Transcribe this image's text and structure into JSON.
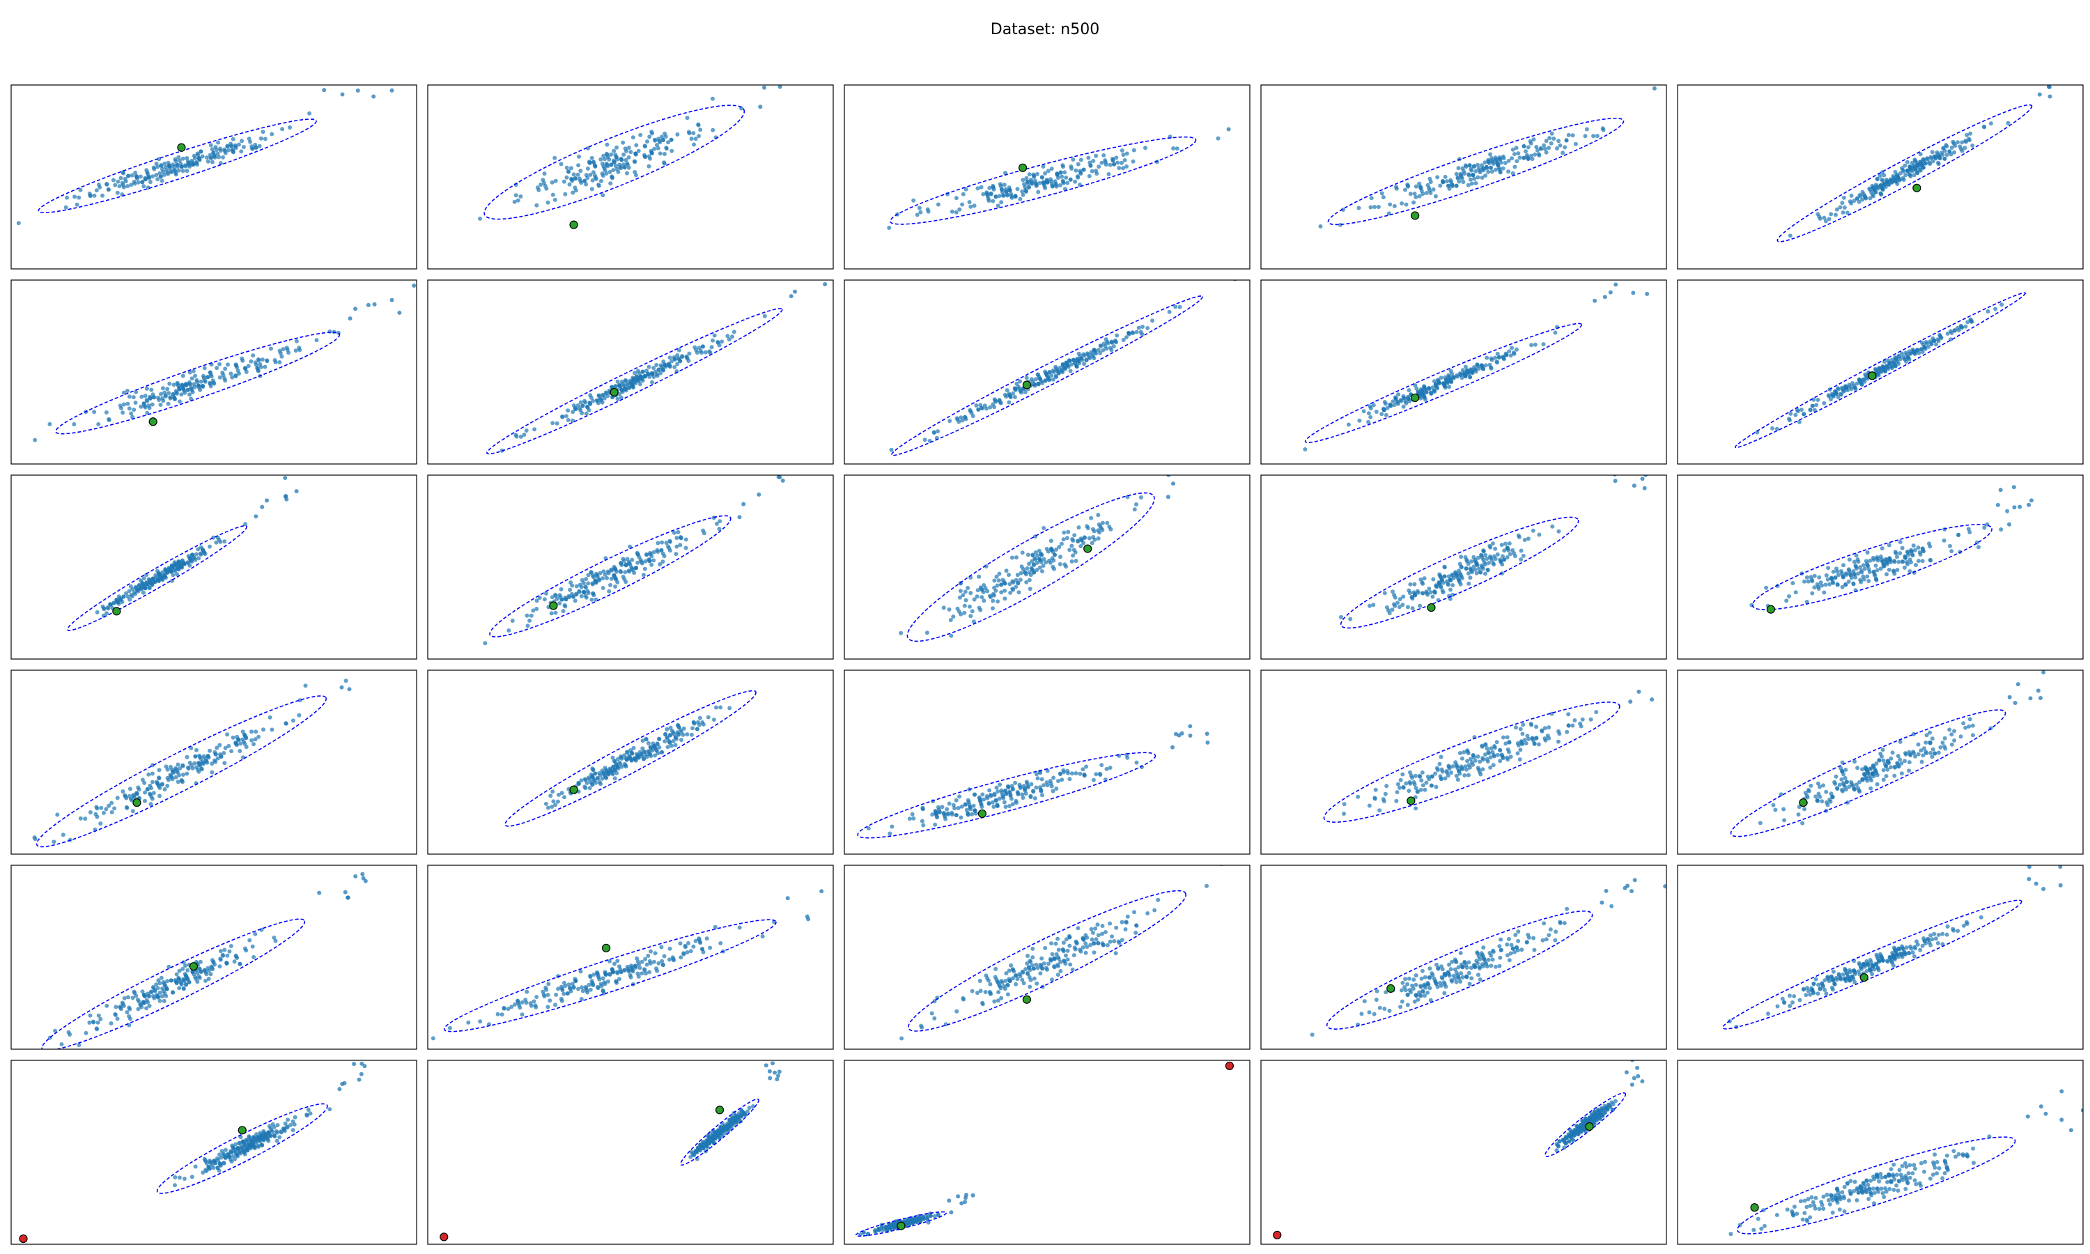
{
  "figure": {
    "title": "Dataset: n500"
  },
  "chart_data": {
    "type": "scatter",
    "grid": false,
    "axes_ticks": "none",
    "rows": 6,
    "cols": 5,
    "colors": {
      "points": "#1f77b4",
      "ellipse": "#0000ff",
      "center_marker": "#2ca02c",
      "outlier_marker": "#d62728",
      "frame": "#000000"
    },
    "panels": [
      {
        "row": 1,
        "col": 1,
        "center": [
          0.42,
          0.66
        ],
        "ellipse": {
          "cx": 0.41,
          "cy": 0.56,
          "rx": 0.72,
          "ry": 0.14,
          "angle": -18
        },
        "outlier": null,
        "spread": "wide"
      },
      {
        "row": 1,
        "col": 2,
        "center": [
          0.36,
          0.24
        ],
        "ellipse": {
          "cx": 0.46,
          "cy": 0.58,
          "rx": 0.69,
          "ry": 0.26,
          "angle": -22
        },
        "outlier": null,
        "spread": "wide"
      },
      {
        "row": 1,
        "col": 3,
        "center": [
          0.44,
          0.55
        ],
        "ellipse": {
          "cx": 0.49,
          "cy": 0.48,
          "rx": 0.78,
          "ry": 0.17,
          "angle": -15
        },
        "outlier": null,
        "spread": "wide"
      },
      {
        "row": 1,
        "col": 4,
        "center": [
          0.38,
          0.29
        ],
        "ellipse": {
          "cx": 0.53,
          "cy": 0.53,
          "rx": 0.77,
          "ry": 0.18,
          "angle": -19
        },
        "outlier": null,
        "spread": "wide"
      },
      {
        "row": 1,
        "col": 5,
        "center": [
          0.59,
          0.44
        ],
        "ellipse": {
          "cx": 0.56,
          "cy": 0.52,
          "rx": 0.71,
          "ry": 0.13,
          "angle": -28
        },
        "outlier": null,
        "spread": "tight"
      },
      {
        "row": 2,
        "col": 1,
        "center": [
          0.35,
          0.23
        ],
        "ellipse": {
          "cx": 0.46,
          "cy": 0.44,
          "rx": 0.74,
          "ry": 0.16,
          "angle": -19
        },
        "outlier": null,
        "spread": "wide"
      },
      {
        "row": 2,
        "col": 2,
        "center": [
          0.46,
          0.39
        ],
        "ellipse": {
          "cx": 0.51,
          "cy": 0.45,
          "rx": 0.81,
          "ry": 0.12,
          "angle": -26
        },
        "outlier": null,
        "spread": "tight"
      },
      {
        "row": 2,
        "col": 3,
        "center": [
          0.45,
          0.43
        ],
        "ellipse": {
          "cx": 0.5,
          "cy": 0.48,
          "rx": 0.86,
          "ry": 0.11,
          "angle": -27
        },
        "outlier": null,
        "spread": "tight"
      },
      {
        "row": 2,
        "col": 4,
        "center": [
          0.38,
          0.36
        ],
        "ellipse": {
          "cx": 0.45,
          "cy": 0.44,
          "rx": 0.74,
          "ry": 0.12,
          "angle": -23
        },
        "outlier": null,
        "spread": "tight"
      },
      {
        "row": 2,
        "col": 5,
        "center": [
          0.48,
          0.48
        ],
        "ellipse": {
          "cx": 0.5,
          "cy": 0.51,
          "rx": 0.81,
          "ry": 0.08,
          "angle": -28
        },
        "outlier": null,
        "spread": "tight"
      },
      {
        "row": 3,
        "col": 1,
        "center": [
          0.26,
          0.26
        ],
        "ellipse": {
          "cx": 0.36,
          "cy": 0.44,
          "rx": 0.51,
          "ry": 0.1,
          "angle": -30
        },
        "outlier": null,
        "spread": "tight"
      },
      {
        "row": 3,
        "col": 2,
        "center": [
          0.31,
          0.29
        ],
        "ellipse": {
          "cx": 0.45,
          "cy": 0.45,
          "rx": 0.66,
          "ry": 0.18,
          "angle": -26
        },
        "outlier": null,
        "spread": "wide"
      },
      {
        "row": 3,
        "col": 3,
        "center": [
          0.6,
          0.6
        ],
        "ellipse": {
          "cx": 0.46,
          "cy": 0.5,
          "rx": 0.7,
          "ry": 0.27,
          "angle": -30
        },
        "outlier": null,
        "spread": "wide"
      },
      {
        "row": 3,
        "col": 4,
        "center": [
          0.42,
          0.28
        ],
        "ellipse": {
          "cx": 0.49,
          "cy": 0.47,
          "rx": 0.64,
          "ry": 0.2,
          "angle": -24
        },
        "outlier": null,
        "spread": "wide"
      },
      {
        "row": 3,
        "col": 5,
        "center": [
          0.23,
          0.27
        ],
        "ellipse": {
          "cx": 0.48,
          "cy": 0.5,
          "rx": 0.62,
          "ry": 0.2,
          "angle": -18
        },
        "outlier": null,
        "spread": "wide"
      },
      {
        "row": 4,
        "col": 1,
        "center": [
          0.31,
          0.28
        ],
        "ellipse": {
          "cx": 0.42,
          "cy": 0.45,
          "rx": 0.8,
          "ry": 0.2,
          "angle": -27
        },
        "outlier": null,
        "spread": "wide"
      },
      {
        "row": 4,
        "col": 2,
        "center": [
          0.36,
          0.35
        ],
        "ellipse": {
          "cx": 0.5,
          "cy": 0.52,
          "rx": 0.7,
          "ry": 0.15,
          "angle": -28
        },
        "outlier": null,
        "spread": "tight"
      },
      {
        "row": 4,
        "col": 3,
        "center": [
          0.34,
          0.22
        ],
        "ellipse": {
          "cx": 0.4,
          "cy": 0.32,
          "rx": 0.76,
          "ry": 0.17,
          "angle": -15
        },
        "outlier": null,
        "spread": "wide"
      },
      {
        "row": 4,
        "col": 4,
        "center": [
          0.37,
          0.29
        ],
        "ellipse": {
          "cx": 0.52,
          "cy": 0.5,
          "rx": 0.78,
          "ry": 0.23,
          "angle": -21
        },
        "outlier": null,
        "spread": "wide"
      },
      {
        "row": 4,
        "col": 5,
        "center": [
          0.31,
          0.28
        ],
        "ellipse": {
          "cx": 0.47,
          "cy": 0.44,
          "rx": 0.74,
          "ry": 0.2,
          "angle": -24
        },
        "outlier": null,
        "spread": "wide"
      },
      {
        "row": 5,
        "col": 1,
        "center": [
          0.45,
          0.45
        ],
        "ellipse": {
          "cx": 0.4,
          "cy": 0.35,
          "rx": 0.72,
          "ry": 0.18,
          "angle": -26
        },
        "outlier": null,
        "spread": "wide"
      },
      {
        "row": 5,
        "col": 2,
        "center": [
          0.44,
          0.55
        ],
        "ellipse": {
          "cx": 0.45,
          "cy": 0.4,
          "rx": 0.86,
          "ry": 0.17,
          "angle": -18
        },
        "outlier": null,
        "spread": "wide"
      },
      {
        "row": 5,
        "col": 3,
        "center": [
          0.45,
          0.27
        ],
        "ellipse": {
          "cx": 0.5,
          "cy": 0.48,
          "rx": 0.76,
          "ry": 0.23,
          "angle": -26
        },
        "outlier": null,
        "spread": "wide"
      },
      {
        "row": 5,
        "col": 4,
        "center": [
          0.32,
          0.33
        ],
        "ellipse": {
          "cx": 0.49,
          "cy": 0.43,
          "rx": 0.71,
          "ry": 0.21,
          "angle": -23
        },
        "outlier": null,
        "spread": "wide"
      },
      {
        "row": 5,
        "col": 5,
        "center": [
          0.46,
          0.39
        ],
        "ellipse": {
          "cx": 0.48,
          "cy": 0.46,
          "rx": 0.8,
          "ry": 0.13,
          "angle": -23
        },
        "outlier": null,
        "spread": "tight"
      },
      {
        "row": 6,
        "col": 1,
        "center": [
          0.57,
          0.62
        ],
        "ellipse": {
          "cx": 0.57,
          "cy": 0.52,
          "rx": 0.47,
          "ry": 0.14,
          "angle": -27
        },
        "outlier": [
          0.03,
          0.03
        ],
        "spread": "tight"
      },
      {
        "row": 6,
        "col": 2,
        "center": [
          0.72,
          0.73
        ],
        "ellipse": {
          "cx": 0.72,
          "cy": 0.61,
          "rx": 0.25,
          "ry": 0.07,
          "angle": -40
        },
        "outlier": [
          0.04,
          0.04
        ],
        "spread": "xtight"
      },
      {
        "row": 6,
        "col": 3,
        "center": [
          0.14,
          0.1
        ],
        "ellipse": {
          "cx": 0.14,
          "cy": 0.11,
          "rx": 0.23,
          "ry": 0.05,
          "angle": -14
        },
        "outlier": [
          0.95,
          0.97
        ],
        "spread": "xtight"
      },
      {
        "row": 6,
        "col": 4,
        "center": [
          0.81,
          0.64
        ],
        "ellipse": {
          "cx": 0.8,
          "cy": 0.65,
          "rx": 0.25,
          "ry": 0.08,
          "angle": -38
        },
        "outlier": [
          0.04,
          0.05
        ],
        "spread": "xtight"
      },
      {
        "row": 6,
        "col": 5,
        "center": [
          0.19,
          0.2
        ],
        "ellipse": {
          "cx": 0.49,
          "cy": 0.32,
          "rx": 0.72,
          "ry": 0.2,
          "angle": -18
        },
        "outlier": null,
        "spread": "wide"
      }
    ]
  }
}
